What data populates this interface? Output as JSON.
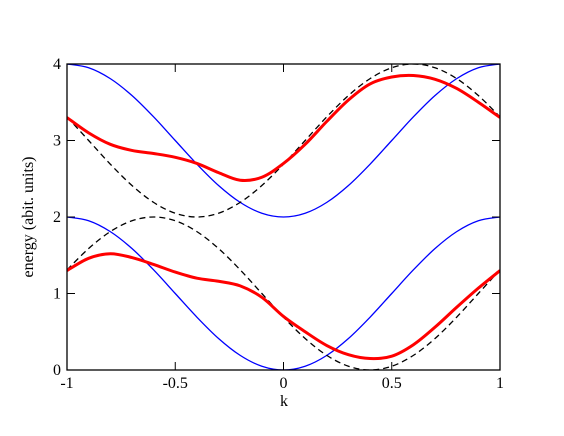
{
  "chart_data": {
    "type": "line",
    "x_label": "k",
    "y_label": "energy (abit. units)",
    "x": [
      -1,
      -0.9,
      -0.8,
      -0.7,
      -0.6,
      -0.5,
      -0.4,
      -0.3,
      -0.2,
      -0.1,
      0,
      0.1,
      0.2,
      0.3,
      0.4,
      0.5,
      0.6,
      0.7,
      0.8,
      0.9,
      1
    ],
    "series": [
      {
        "color": "#0000ff",
        "width": 1.3,
        "dashed": false,
        "values": [
          2,
          1.951,
          1.809,
          1.588,
          1.309,
          1,
          0.691,
          0.412,
          0.191,
          0.049,
          0,
          0.049,
          0.191,
          0.412,
          0.691,
          1,
          1.309,
          1.588,
          1.809,
          1.951,
          2
        ]
      },
      {
        "color": "#0000ff",
        "width": 1.3,
        "dashed": false,
        "values": [
          4,
          3.951,
          3.809,
          3.588,
          3.309,
          3,
          2.691,
          2.412,
          2.191,
          2.049,
          2,
          2.049,
          2.191,
          2.412,
          2.691,
          3,
          3.309,
          3.588,
          3.809,
          3.951,
          4
        ]
      },
      {
        "color": "#000000",
        "width": 1.3,
        "dashed": true,
        "values": [
          1.309,
          1.588,
          1.809,
          1.951,
          2,
          1.951,
          1.809,
          1.588,
          1.309,
          1,
          0.691,
          0.412,
          0.191,
          0.049,
          0,
          0.049,
          0.191,
          0.412,
          0.691,
          1,
          1.309
        ]
      },
      {
        "color": "#000000",
        "width": 1.3,
        "dashed": true,
        "values": [
          3.309,
          3,
          2.691,
          2.412,
          2.191,
          2.049,
          2,
          2.049,
          2.191,
          2.412,
          2.691,
          3,
          3.309,
          3.588,
          3.809,
          3.951,
          4,
          3.951,
          3.809,
          3.588,
          3.309
        ]
      },
      {
        "color": "#ff0000",
        "width": 3,
        "dashed": false,
        "values": [
          1.3,
          1.46,
          1.52,
          1.47,
          1.38,
          1.28,
          1.2,
          1.16,
          1.1,
          0.95,
          0.7,
          0.5,
          0.32,
          0.2,
          0.15,
          0.18,
          0.33,
          0.56,
          0.82,
          1.07,
          1.3
        ]
      },
      {
        "color": "#ff0000",
        "width": 3,
        "dashed": false,
        "values": [
          3.3,
          3.1,
          2.95,
          2.87,
          2.83,
          2.78,
          2.7,
          2.58,
          2.48,
          2.52,
          2.7,
          2.95,
          3.25,
          3.53,
          3.74,
          3.83,
          3.85,
          3.8,
          3.68,
          3.5,
          3.3
        ]
      }
    ],
    "xlim": [
      -1,
      1
    ],
    "xticks": [
      -1,
      -0.5,
      0,
      0.5,
      1
    ],
    "ylim": [
      0,
      4
    ],
    "yticks": [
      0,
      1,
      2,
      3,
      4
    ]
  }
}
